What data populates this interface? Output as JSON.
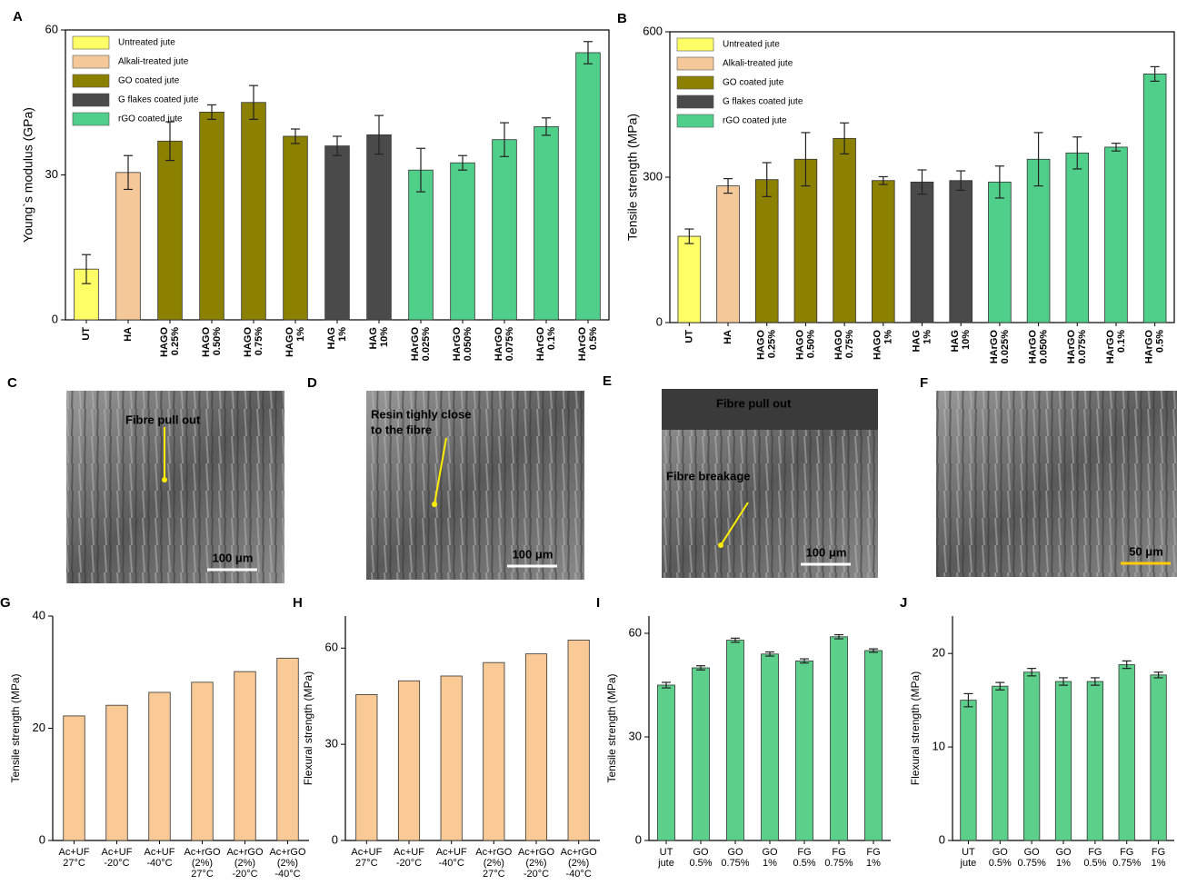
{
  "chart_data": [
    {
      "type": "bar",
      "label": "A",
      "ylabel": "Young`s modulus (GPa)",
      "ylim": [
        0,
        60
      ],
      "yticks": [
        0,
        30,
        60
      ],
      "legend": "upper left",
      "box": true,
      "rotate_labels": true,
      "categories": [
        [
          "UT"
        ],
        [
          "HA"
        ],
        [
          "HAGO",
          "0.25%"
        ],
        [
          "HAGO",
          "0.50%"
        ],
        [
          "HAGO",
          "0.75%"
        ],
        [
          "HAGO",
          "1%"
        ],
        [
          "HAG",
          "1%"
        ],
        [
          "HAG",
          "10%"
        ],
        [
          "HArGO",
          "0.025%"
        ],
        [
          "HArGO",
          "0.050%"
        ],
        [
          "HArGO",
          "0.075%"
        ],
        [
          "HArGO",
          "0.1%"
        ],
        [
          "HArGO",
          "0.5%"
        ]
      ],
      "series": [
        {
          "name": "Untreated jute",
          "color": "#ffff66",
          "values": [
            10.5,
            null,
            null,
            null,
            null,
            null,
            null,
            null,
            null,
            null,
            null,
            null,
            null
          ],
          "errors": [
            3,
            null,
            null,
            null,
            null,
            null,
            null,
            null,
            null,
            null,
            null,
            null,
            null
          ]
        },
        {
          "name": "Alkali-treated jute",
          "color": "#f5c89a",
          "values": [
            null,
            30.5,
            null,
            null,
            null,
            null,
            null,
            null,
            null,
            null,
            null,
            null,
            null
          ],
          "errors": [
            null,
            3.5,
            null,
            null,
            null,
            null,
            null,
            null,
            null,
            null,
            null,
            null,
            null
          ]
        },
        {
          "name": "GO coated jute",
          "color": "#8b8000",
          "values": [
            null,
            null,
            37,
            43,
            45,
            38,
            null,
            null,
            null,
            null,
            null,
            null,
            null
          ],
          "errors": [
            null,
            null,
            4,
            1.5,
            3.5,
            1.5,
            null,
            null,
            null,
            null,
            null,
            null,
            null
          ]
        },
        {
          "name": "G flakes coated jute",
          "color": "#4a4a4a",
          "values": [
            null,
            null,
            null,
            null,
            null,
            null,
            36,
            38.3,
            null,
            null,
            null,
            null,
            null
          ],
          "errors": [
            null,
            null,
            null,
            null,
            null,
            null,
            2,
            4,
            null,
            null,
            null,
            null,
            null
          ]
        },
        {
          "name": "rGO coated jute",
          "color": "#4fcf8a",
          "values": [
            null,
            null,
            null,
            null,
            null,
            null,
            null,
            null,
            31,
            32.5,
            37.3,
            40,
            55.3
          ],
          "errors": [
            null,
            null,
            null,
            null,
            null,
            null,
            null,
            null,
            4.5,
            1.5,
            3.5,
            1.8,
            2.3
          ]
        }
      ]
    },
    {
      "type": "bar",
      "label": "B",
      "ylabel": "Tensile strength (MPa)",
      "ylim": [
        0,
        600
      ],
      "yticks": [
        0,
        300,
        600
      ],
      "legend": "upper left",
      "box": true,
      "rotate_labels": true,
      "categories": [
        [
          "UT"
        ],
        [
          "HA"
        ],
        [
          "HAGO",
          "0.25%"
        ],
        [
          "HAGO",
          "0.50%"
        ],
        [
          "HAGO",
          "0.75%"
        ],
        [
          "HAGO",
          "1%"
        ],
        [
          "HAG",
          "1%"
        ],
        [
          "HAG",
          "10%"
        ],
        [
          "HArGO",
          "0.025%"
        ],
        [
          "HArGO",
          "0.050%"
        ],
        [
          "HArGO",
          "0.075%"
        ],
        [
          "HArGO",
          "0.1%"
        ],
        [
          "HArGO",
          "0.5%"
        ]
      ],
      "series": [
        {
          "name": "Untreated jute",
          "color": "#ffff66",
          "values": [
            178,
            null,
            null,
            null,
            null,
            null,
            null,
            null,
            null,
            null,
            null,
            null,
            null
          ],
          "errors": [
            15,
            null,
            null,
            null,
            null,
            null,
            null,
            null,
            null,
            null,
            null,
            null,
            null
          ]
        },
        {
          "name": "Alkali-treated jute",
          "color": "#f5c89a",
          "values": [
            null,
            282,
            null,
            null,
            null,
            null,
            null,
            null,
            null,
            null,
            null,
            null,
            null
          ],
          "errors": [
            null,
            15,
            null,
            null,
            null,
            null,
            null,
            null,
            null,
            null,
            null,
            null,
            null
          ]
        },
        {
          "name": "GO coated jute",
          "color": "#8b8000",
          "values": [
            null,
            null,
            295,
            337,
            380,
            293,
            null,
            null,
            null,
            null,
            null,
            null,
            null
          ],
          "errors": [
            null,
            null,
            35,
            55,
            32,
            8,
            null,
            null,
            null,
            null,
            null,
            null,
            null
          ]
        },
        {
          "name": "G flakes coated jute",
          "color": "#4a4a4a",
          "values": [
            null,
            null,
            null,
            null,
            null,
            null,
            290,
            293,
            null,
            null,
            null,
            null,
            null
          ],
          "errors": [
            null,
            null,
            null,
            null,
            null,
            null,
            25,
            20,
            null,
            null,
            null,
            null,
            null
          ]
        },
        {
          "name": "rGO coated jute",
          "color": "#4fcf8a",
          "values": [
            null,
            null,
            null,
            null,
            null,
            null,
            null,
            null,
            290,
            337,
            350,
            362,
            513
          ],
          "errors": [
            null,
            null,
            null,
            null,
            null,
            null,
            null,
            null,
            33,
            55,
            33,
            8,
            15
          ]
        }
      ]
    },
    {
      "type": "bar",
      "label": "G",
      "ylabel": "Tensile strength (MPa)",
      "ylim": [
        0,
        40
      ],
      "yticks": [
        0,
        20,
        40
      ],
      "color": "#f9c996",
      "categories": [
        [
          "Ac+UF",
          "27°C"
        ],
        [
          "Ac+UF",
          "-20°C"
        ],
        [
          "Ac+UF",
          "-40°C"
        ],
        [
          "Ac+rGO",
          "(2%)",
          "27°C"
        ],
        [
          "Ac+rGO",
          "(2%)",
          "-20°C"
        ],
        [
          "Ac+rGO",
          "(2%)",
          "-40°C"
        ]
      ],
      "values": [
        22.2,
        24.1,
        26.4,
        28.2,
        30.1,
        32.5
      ]
    },
    {
      "type": "bar",
      "label": "H",
      "ylabel": "Flexural strength (MPa)",
      "ylim": [
        0,
        70
      ],
      "yticks": [
        0,
        30,
        60
      ],
      "color": "#f9c996",
      "categories": [
        [
          "Ac+UF",
          "27°C"
        ],
        [
          "Ac+UF",
          "-20°C"
        ],
        [
          "Ac+UF",
          "-40°C"
        ],
        [
          "Ac+rGO",
          "(2%)",
          "27°C"
        ],
        [
          "Ac+rGO",
          "(2%)",
          "-20°C"
        ],
        [
          "Ac+rGO",
          "(2%)",
          "-40°C"
        ]
      ],
      "values": [
        45.5,
        49.8,
        51.3,
        55.5,
        58.2,
        62.5
      ]
    },
    {
      "type": "bar",
      "label": "I",
      "ylabel": "Tensile strength (MPa)",
      "ylim": [
        0,
        65
      ],
      "yticks": [
        0,
        30,
        60
      ],
      "color": "#5ccf8a",
      "categories": [
        [
          "UT",
          "jute"
        ],
        [
          "GO",
          "0.5%"
        ],
        [
          "GO",
          "0.75%"
        ],
        [
          "GO",
          "1%"
        ],
        [
          "FG",
          "0.5%"
        ],
        [
          "FG",
          "0.75%"
        ],
        [
          "FG",
          "1%"
        ]
      ],
      "values": [
        45,
        50,
        58,
        54,
        52,
        59,
        55
      ],
      "errors": [
        0.8,
        0.6,
        0.6,
        0.6,
        0.6,
        0.6,
        0.5
      ]
    },
    {
      "type": "bar",
      "label": "J",
      "ylabel": "Flexural strength (MPa)",
      "ylim": [
        0,
        24
      ],
      "yticks": [
        0,
        10,
        20
      ],
      "color": "#5ccf8a",
      "categories": [
        [
          "UT",
          "jute"
        ],
        [
          "GO",
          "0.5%"
        ],
        [
          "GO",
          "0.75%"
        ],
        [
          "GO",
          "1%"
        ],
        [
          "FG",
          "0.5%"
        ],
        [
          "FG",
          "0.75%"
        ],
        [
          "FG",
          "1%"
        ]
      ],
      "values": [
        15,
        16.5,
        18,
        17,
        17,
        18.8,
        17.7
      ],
      "errors": [
        0.7,
        0.4,
        0.4,
        0.4,
        0.4,
        0.4,
        0.3
      ]
    }
  ],
  "images": [
    {
      "label": "C",
      "annotations": [
        "Fibre pull out"
      ],
      "scale": "100 μm"
    },
    {
      "label": "D",
      "annotations": [
        "Resin tighly close",
        "to the fibre"
      ],
      "scale": "100 μm"
    },
    {
      "label": "E",
      "annotations": [
        "Fibre pull out",
        "Fibre breakage"
      ],
      "scale": "100 μm"
    },
    {
      "label": "F",
      "annotations": [],
      "scale": "50 μm"
    }
  ]
}
